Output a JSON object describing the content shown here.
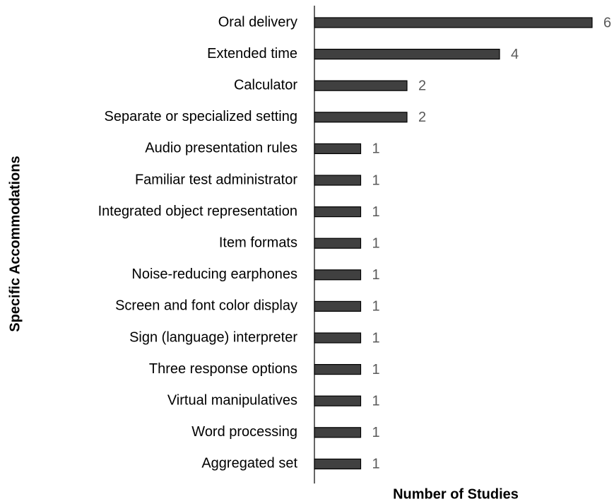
{
  "chart_data": {
    "type": "hbar",
    "xlabel": "Number of Studies",
    "ylabel": "Specific Accommodations",
    "categories": [
      "Oral delivery",
      "Extended time",
      "Calculator",
      "Separate or specialized setting",
      "Audio presentation rules",
      "Familiar test administrator",
      "Integrated object representation",
      "Item formats",
      "Noise-reducing earphones",
      "Screen and font color display",
      "Sign (language) interpreter",
      "Three response options",
      "Virtual manipulatives",
      "Word processing",
      "Aggregated set"
    ],
    "values": [
      6,
      4,
      2,
      2,
      1,
      1,
      1,
      1,
      1,
      1,
      1,
      1,
      1,
      1,
      1
    ],
    "color": "#404040",
    "xlim": [
      0,
      6
    ]
  }
}
